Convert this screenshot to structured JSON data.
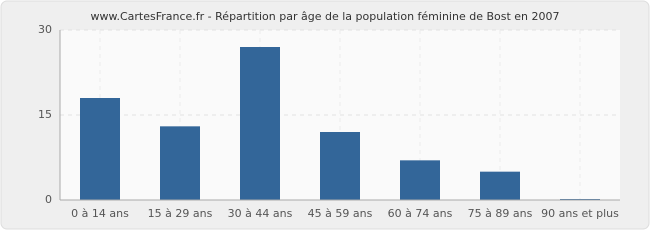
{
  "chart_data": {
    "type": "bar",
    "title": "www.CartesFrance.fr - Répartition par âge de la population féminine de Bost en 2007",
    "categories": [
      "0 à 14 ans",
      "15 à 29 ans",
      "30 à 44 ans",
      "45 à 59 ans",
      "60 à 74 ans",
      "75 à 89 ans",
      "90 ans et plus"
    ],
    "values": [
      18,
      13,
      27,
      12,
      7,
      5,
      0
    ],
    "color": "#336699",
    "ylim": [
      0,
      30
    ],
    "yticks": [
      0,
      15,
      30
    ],
    "grid": true
  }
}
